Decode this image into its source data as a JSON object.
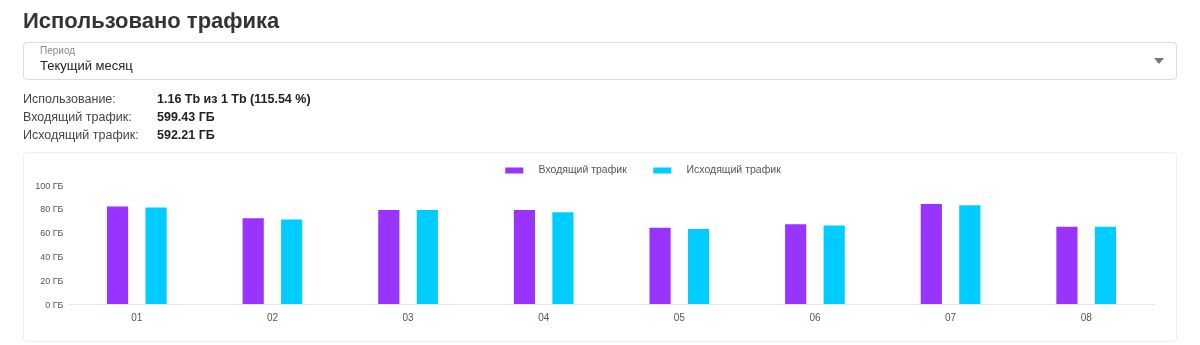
{
  "chart_data": {
    "type": "bar",
    "title": "Использовано трафика",
    "annotations": [
      "Период",
      "Текущий месяц",
      "Использование:",
      "1.16 Tb из 1 Tb (115.54 %)",
      "Входящий трафик:",
      "599.43 ГБ",
      "Исходящий трафик:",
      "592.21 ГБ"
    ],
    "categories": [
      "01",
      "02",
      "03",
      "04",
      "05",
      "06",
      "07",
      "08"
    ],
    "series": [
      {
        "name": "Входящий трафик",
        "color": "#9933ff",
        "values": [
          82,
          72,
          79,
          79,
          64,
          67,
          84,
          65
        ]
      },
      {
        "name": "Исходящий трафик",
        "color": "#00ccff",
        "values": [
          81,
          71,
          79,
          77,
          63,
          66,
          83,
          65
        ]
      }
    ],
    "ylim": [
      0,
      100
    ],
    "yticks": [
      {
        "value": 0,
        "label": "0 ГБ"
      },
      {
        "value": 20,
        "label": "20 ГБ"
      },
      {
        "value": 40,
        "label": "40 ГБ"
      },
      {
        "value": 60,
        "label": "60 ГБ"
      },
      {
        "value": 80,
        "label": "80 ГБ"
      },
      {
        "value": 100,
        "label": "100 ГБ"
      }
    ],
    "grid": false,
    "legend": "top"
  }
}
